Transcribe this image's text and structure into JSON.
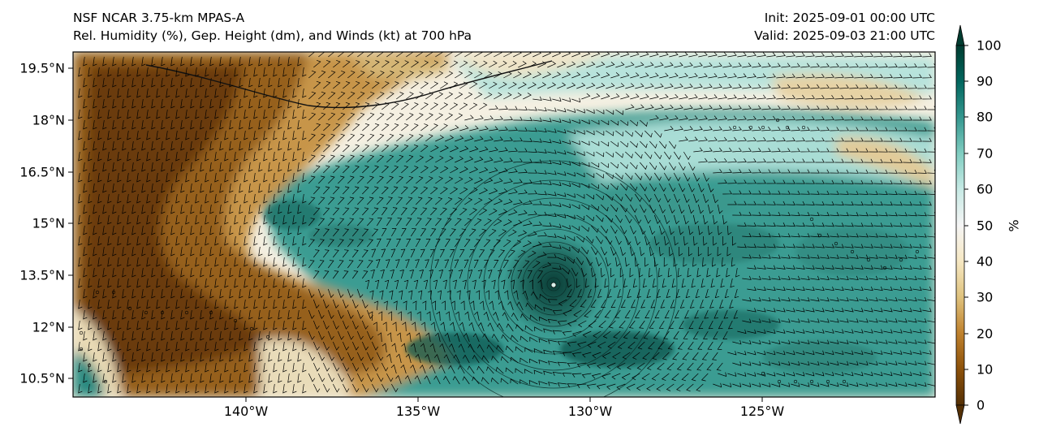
{
  "header": {
    "model": "NSF NCAR 3.75-km MPAS-A",
    "fields": "Rel. Humidity (%), Gep. Height (dm), and Winds (kt) at 700 hPa",
    "init": "Init: 2025-09-01 00:00 UTC",
    "valid": "Valid: 2025-09-03 21:00 UTC"
  },
  "chart_data": {
    "type": "heatmap",
    "title": "NSF NCAR 3.75-km MPAS-A",
    "subtitle": "Rel. Humidity (%), Gep. Height (dm), and Winds (kt) at 700 hPa",
    "variable": "Relative humidity",
    "pressure_level_hPa": 700,
    "units": "%",
    "lon_range": [
      -145.3,
      -120.2
    ],
    "lat_range": [
      9.9,
      20.0
    ],
    "lat_ticks": [
      "19.5°N",
      "18°N",
      "16.5°N",
      "15°N",
      "13.5°N",
      "12°N",
      "10.5°N"
    ],
    "lon_ticks": [
      "140°W",
      "135°W",
      "130°W",
      "125°W"
    ],
    "colorbar": {
      "label": "%",
      "range": [
        0,
        100
      ],
      "ticks": [
        "0",
        "10",
        "20",
        "30",
        "40",
        "50",
        "60",
        "70",
        "80",
        "90",
        "100"
      ],
      "colormap": "BrBG",
      "colors": [
        "#543005",
        "#8c510a",
        "#bf812d",
        "#dfc27d",
        "#f6e8c3",
        "#f5f5f5",
        "#c7eae5",
        "#80cdc1",
        "#35978f",
        "#01665e",
        "#003c30"
      ]
    },
    "features": [
      {
        "name": "cyclone center",
        "lon": -131.3,
        "lat": 13.2
      },
      {
        "name": "dry air intrusion",
        "lon": -142.0,
        "lat": 15.5
      }
    ]
  }
}
